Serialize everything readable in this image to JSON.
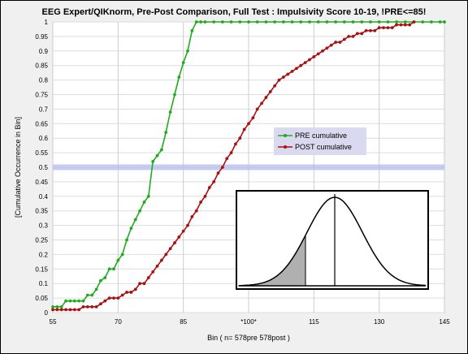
{
  "chart_data": {
    "type": "line",
    "title": "EEG Expert/QIKnorm, Pre-Post Comparison, Full Test : Impulsivity Score  10-19, !PRE<=85!",
    "xlabel": "Bin  ( n= 578pre 578post )",
    "ylabel": "[Cumulative Occurrence in Bin]",
    "xlim": [
      55,
      145
    ],
    "ylim": [
      0,
      1
    ],
    "x_ticks": [
      55,
      70,
      85,
      100,
      115,
      130,
      145
    ],
    "x_tick_labels": [
      "55",
      "70",
      "85",
      "*100*",
      "115",
      "130",
      "145"
    ],
    "y_ticks": [
      "0",
      "0.05",
      "0.1",
      "0.15",
      "0.2",
      "0.25",
      "0.3",
      "0.35",
      "0.4",
      "0.45",
      "0.5",
      "0.55",
      "0.6",
      "0.65",
      "0.7",
      "0.75",
      "0.8",
      "0.85",
      "0.9",
      "0.95",
      "1"
    ],
    "grid": true,
    "reference_line_y": 0.5,
    "legend_position": "center-right",
    "series": [
      {
        "name": "PRE cumulative",
        "color": "#22aa22",
        "x": [
          55,
          56,
          57,
          58,
          59,
          60,
          61,
          62,
          63,
          64,
          65,
          66,
          67,
          68,
          69,
          70,
          71,
          72,
          73,
          74,
          75,
          76,
          77,
          78,
          79,
          80,
          81,
          82,
          83,
          84,
          85,
          86,
          87,
          88,
          89,
          90,
          92,
          94,
          96,
          98,
          100,
          102,
          104,
          106,
          108,
          110,
          112,
          114,
          116,
          118,
          120,
          122,
          124,
          126,
          128,
          130,
          132,
          134,
          136,
          138,
          140,
          142,
          144,
          145
        ],
        "y": [
          0.02,
          0.02,
          0.02,
          0.04,
          0.04,
          0.04,
          0.04,
          0.04,
          0.06,
          0.06,
          0.08,
          0.11,
          0.12,
          0.15,
          0.15,
          0.18,
          0.2,
          0.25,
          0.29,
          0.32,
          0.35,
          0.38,
          0.4,
          0.52,
          0.54,
          0.56,
          0.62,
          0.69,
          0.75,
          0.81,
          0.86,
          0.9,
          0.97,
          1.0,
          1.0,
          1.0,
          1.0,
          1.0,
          1.0,
          1.0,
          1.0,
          1.0,
          1.0,
          1.0,
          1.0,
          1.0,
          1.0,
          1.0,
          1.0,
          1.0,
          1.0,
          1.0,
          1.0,
          1.0,
          1.0,
          1.0,
          1.0,
          1.0,
          1.0,
          1.0,
          1.0,
          1.0,
          1.0,
          1.0
        ]
      },
      {
        "name": "POST cumulative",
        "color": "#aa1111",
        "x": [
          55,
          56,
          57,
          58,
          59,
          60,
          61,
          62,
          63,
          64,
          65,
          66,
          67,
          68,
          69,
          70,
          71,
          72,
          73,
          74,
          75,
          76,
          77,
          78,
          79,
          80,
          81,
          82,
          83,
          84,
          85,
          86,
          87,
          88,
          89,
          90,
          91,
          92,
          93,
          94,
          95,
          96,
          97,
          98,
          99,
          100,
          101,
          102,
          103,
          104,
          105,
          106,
          107,
          108,
          109,
          110,
          111,
          112,
          113,
          114,
          115,
          116,
          117,
          118,
          119,
          120,
          121,
          122,
          123,
          124,
          125,
          126,
          127,
          128,
          129,
          130,
          131,
          132,
          133,
          134,
          135,
          136,
          137,
          138
        ],
        "y": [
          0.01,
          0.01,
          0.01,
          0.01,
          0.01,
          0.01,
          0.01,
          0.02,
          0.02,
          0.02,
          0.02,
          0.03,
          0.04,
          0.05,
          0.05,
          0.05,
          0.06,
          0.07,
          0.07,
          0.08,
          0.1,
          0.1,
          0.12,
          0.14,
          0.16,
          0.18,
          0.2,
          0.22,
          0.24,
          0.26,
          0.28,
          0.3,
          0.33,
          0.35,
          0.38,
          0.4,
          0.43,
          0.45,
          0.48,
          0.5,
          0.53,
          0.55,
          0.58,
          0.6,
          0.63,
          0.65,
          0.67,
          0.7,
          0.72,
          0.74,
          0.76,
          0.78,
          0.8,
          0.81,
          0.82,
          0.83,
          0.84,
          0.85,
          0.86,
          0.87,
          0.88,
          0.89,
          0.9,
          0.91,
          0.92,
          0.93,
          0.93,
          0.94,
          0.95,
          0.95,
          0.96,
          0.96,
          0.97,
          0.97,
          0.97,
          0.98,
          0.98,
          0.98,
          0.98,
          0.99,
          0.99,
          0.99,
          0.99,
          1.0
        ]
      }
    ]
  },
  "inset": {
    "description_icon": "bell-curve-icon"
  }
}
